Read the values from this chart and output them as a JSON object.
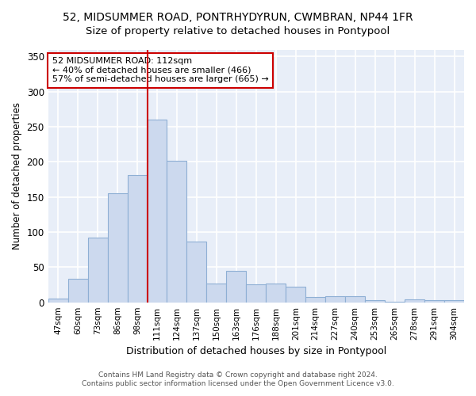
{
  "title_line1": "52, MIDSUMMER ROAD, PONTRHYDYRUN, CWMBRAN, NP44 1FR",
  "title_line2": "Size of property relative to detached houses in Pontypool",
  "xlabel": "Distribution of detached houses by size in Pontypool",
  "ylabel": "Number of detached properties",
  "categories": [
    "47sqm",
    "60sqm",
    "73sqm",
    "86sqm",
    "98sqm",
    "111sqm",
    "124sqm",
    "137sqm",
    "150sqm",
    "163sqm",
    "176sqm",
    "188sqm",
    "201sqm",
    "214sqm",
    "227sqm",
    "240sqm",
    "253sqm",
    "265sqm",
    "278sqm",
    "291sqm",
    "304sqm"
  ],
  "values": [
    5,
    33,
    92,
    155,
    181,
    260,
    202,
    86,
    27,
    45,
    26,
    27,
    22,
    7,
    9,
    9,
    3,
    1,
    4,
    3,
    3
  ],
  "bar_color": "#ccd9ee",
  "bar_edge_color": "#8eafd4",
  "vline_x": 4.5,
  "vline_color": "#cc0000",
  "annotation_text": "52 MIDSUMMER ROAD: 112sqm\n← 40% of detached houses are smaller (466)\n57% of semi-detached houses are larger (665) →",
  "annotation_box_color": "#ffffff",
  "annotation_box_edge": "#cc0000",
  "footnote_line1": "Contains HM Land Registry data © Crown copyright and database right 2024.",
  "footnote_line2": "Contains public sector information licensed under the Open Government Licence v3.0.",
  "ylim": [
    0,
    360
  ],
  "yticks": [
    0,
    50,
    100,
    150,
    200,
    250,
    300,
    350
  ],
  "background_color": "#e8eef8",
  "grid_color": "#ffffff",
  "title_fontsize": 10,
  "subtitle_fontsize": 9.5
}
